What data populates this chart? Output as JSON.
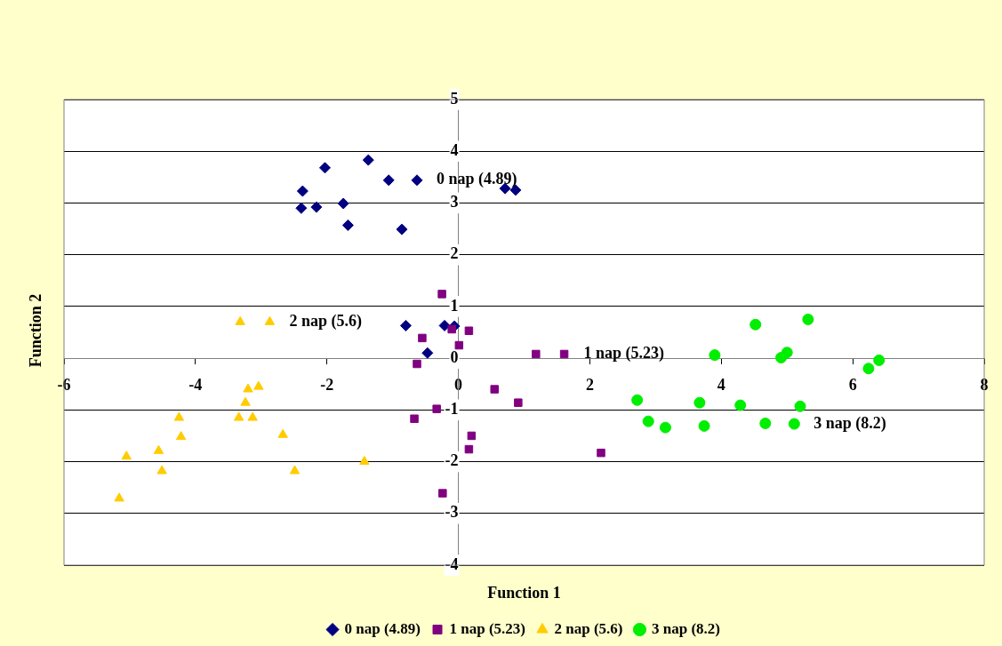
{
  "chart_data": {
    "type": "scatter",
    "xlabel": "Function 1",
    "ylabel": "Function 2",
    "xlim": [
      -6,
      8
    ],
    "xticks": [
      -6,
      -4,
      -2,
      0,
      2,
      4,
      6,
      8
    ],
    "ylim": [
      -4,
      5
    ],
    "yticks": [
      -4,
      -3,
      -2,
      -1,
      0,
      1,
      2,
      3,
      4,
      5
    ],
    "grid": "y",
    "legend": "bottom",
    "series": [
      {
        "name": "0 nap (4.89)",
        "color": "#000080",
        "marker": "diamond",
        "x": [
          -2.37,
          -2.03,
          -1.37,
          -1.06,
          0.71,
          0.87,
          -2.39,
          -2.16,
          -1.75,
          -1.68,
          -0.86,
          -0.8,
          -0.21,
          -0.06,
          -0.47,
          -0.63
        ],
        "values": [
          3.23,
          3.68,
          3.83,
          3.44,
          3.28,
          3.25,
          2.9,
          2.92,
          2.99,
          2.57,
          2.49,
          0.63,
          0.63,
          0.62,
          0.1,
          3.44
        ]
      },
      {
        "name": "1 nap (5.23)",
        "color": "#800080",
        "marker": "square",
        "x": [
          -0.25,
          -0.55,
          -0.1,
          0.16,
          0.01,
          -0.63,
          1.18,
          0.55,
          0.91,
          -0.67,
          -0.33,
          0.2,
          0.16,
          -0.24,
          2.17,
          1.61
        ],
        "values": [
          1.24,
          0.39,
          0.56,
          0.53,
          0.25,
          -0.11,
          0.08,
          -0.6,
          -0.86,
          -1.17,
          -0.98,
          -1.5,
          -1.76,
          -2.61,
          -1.83,
          0.08
        ]
      },
      {
        "name": "2 nap (5.6)",
        "color": "#ffcc00",
        "marker": "triangle",
        "x": [
          -3.32,
          -3.2,
          -3.04,
          -3.24,
          -4.25,
          -3.34,
          -3.13,
          -4.22,
          -2.67,
          -5.05,
          -4.56,
          -4.51,
          -2.49,
          -1.43,
          -5.16,
          -2.87
        ],
        "values": [
          0.7,
          -0.6,
          -0.55,
          -0.86,
          -1.15,
          -1.15,
          -1.15,
          -1.52,
          -1.48,
          -1.9,
          -1.79,
          -2.18,
          -2.18,
          -2.0,
          -2.71,
          0.7
        ]
      },
      {
        "name": "3 nap (8.2)",
        "color": "#00ee00",
        "marker": "circle",
        "x": [
          4.52,
          5.32,
          3.9,
          4.91,
          5.0,
          6.24,
          6.4,
          2.72,
          3.67,
          4.29,
          5.2,
          2.89,
          3.15,
          3.74,
          4.67,
          5.11
        ],
        "values": [
          0.65,
          0.75,
          0.06,
          0.01,
          0.11,
          -0.2,
          -0.04,
          -0.81,
          -0.86,
          -0.91,
          -0.93,
          -1.22,
          -1.34,
          -1.31,
          -1.26,
          -1.27
        ]
      }
    ],
    "annotations": [
      "0 nap (4.89)",
      "1 nap (5.23)",
      "2 nap (5.6)",
      "3 nap (8.2)"
    ]
  }
}
